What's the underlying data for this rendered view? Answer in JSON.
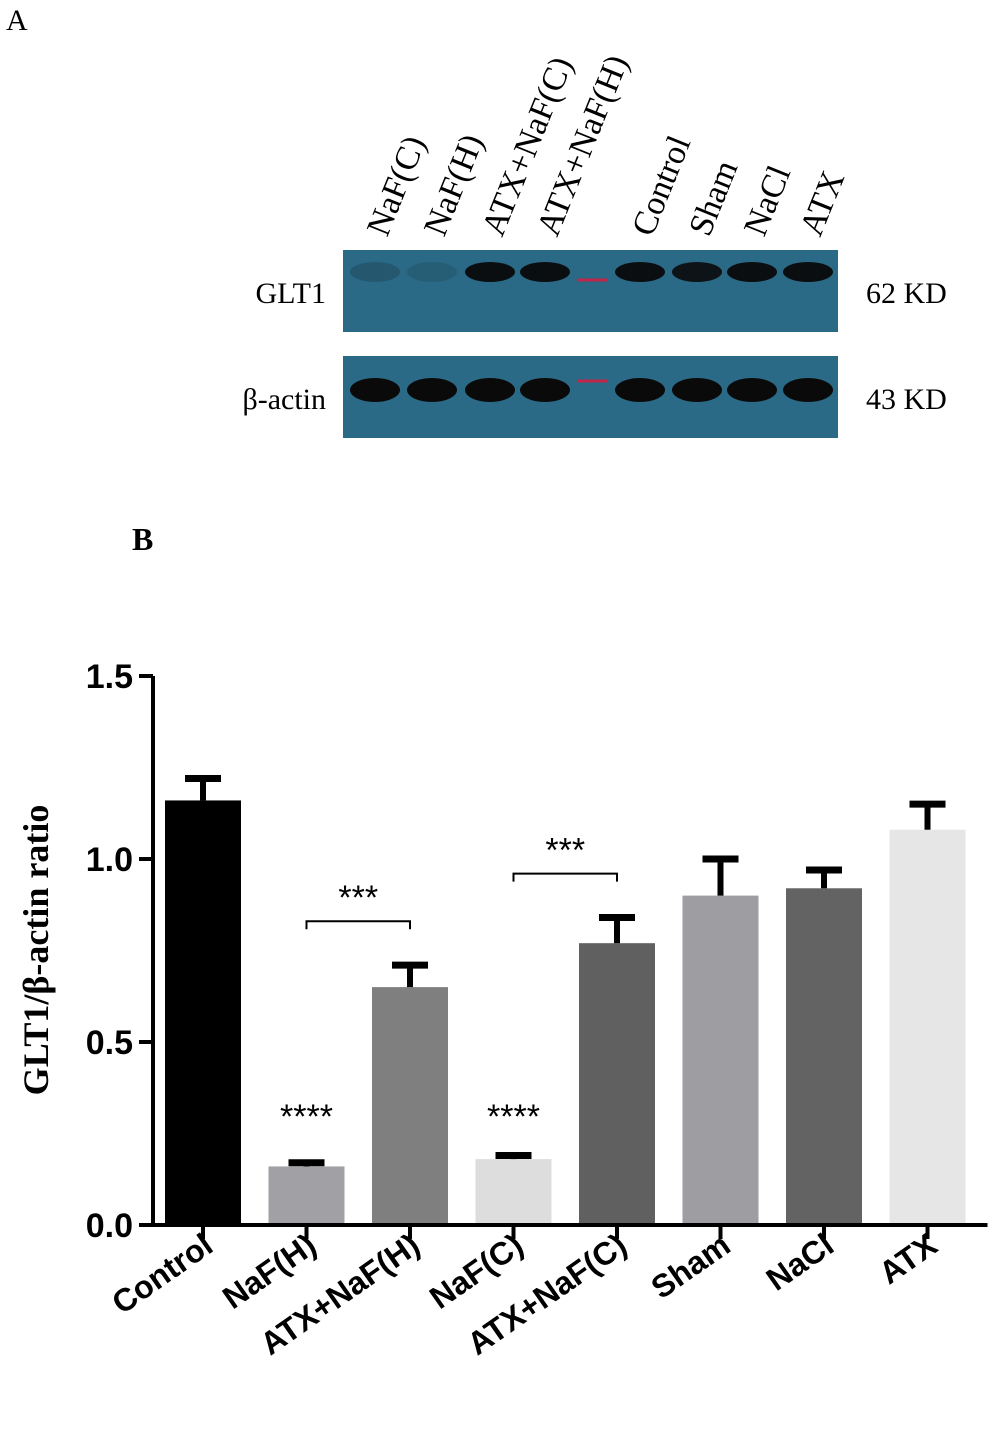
{
  "panel_a": {
    "label": "A",
    "lanes": [
      "NaF(C)",
      "NaF(H)",
      "ATX+NaF(C)",
      "ATX+NaF(H)",
      "",
      "Control",
      "Sham",
      "NaCl",
      "ATX"
    ],
    "blots": [
      {
        "name": "GLT1",
        "size": "62 KD",
        "band_intensity": [
          0.18,
          0.12,
          0.95,
          0.95,
          0,
          0.95,
          0.9,
          0.95,
          0.95
        ]
      },
      {
        "name": "β-actin",
        "size": "43 KD",
        "band_intensity": [
          1,
          1,
          1,
          1,
          0,
          1,
          1,
          1,
          1
        ]
      }
    ],
    "membrane_color": "#2b6a86",
    "band_color": "#0a0a0a",
    "marker_color": "#c0254a"
  },
  "chart_data": {
    "type": "bar",
    "panel_label": "B",
    "categories": [
      "Control",
      "NaF(H)",
      "ATX+NaF(H)",
      "NaF(C)",
      "ATX+NaF(C)",
      "Sham",
      "NaCl",
      "ATX"
    ],
    "values": [
      1.16,
      0.16,
      0.65,
      0.18,
      0.77,
      0.9,
      0.92,
      1.08
    ],
    "errors": [
      0.06,
      0.01,
      0.06,
      0.01,
      0.07,
      0.1,
      0.05,
      0.07
    ],
    "colors": [
      "#000000",
      "#a0a0a5",
      "#7f7f7f",
      "#dddddd",
      "#606060",
      "#9d9da2",
      "#636363",
      "#e6e6e6"
    ],
    "ylabel": "GLT1/β-actin ratio",
    "xlabel": "",
    "ylim": [
      0,
      1.5
    ],
    "yticks": [
      "0.0",
      "0.5",
      "1.0",
      "1.5"
    ],
    "annotations": [
      {
        "text": "****",
        "category": "NaF(H)"
      },
      {
        "text": "****",
        "category": "NaF(C)"
      }
    ],
    "brackets": [
      {
        "text": "***",
        "from": "NaF(H)",
        "to": "ATX+NaF(H)",
        "y": 0.83
      },
      {
        "text": "***",
        "from": "NaF(C)",
        "to": "ATX+NaF(C)",
        "y": 0.96
      }
    ],
    "grid": false,
    "legend": "none"
  }
}
